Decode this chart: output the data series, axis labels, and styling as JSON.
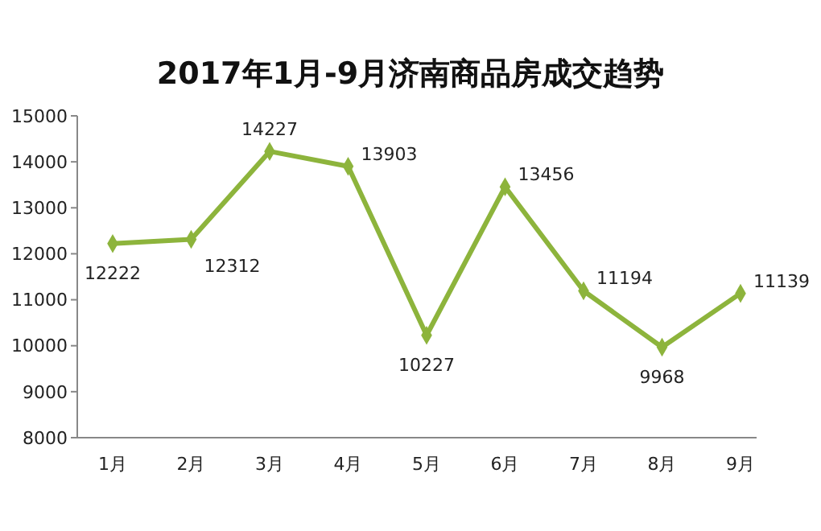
{
  "chart_data": {
    "type": "line",
    "title": "2017年1月-9月济南商品房成交趋势",
    "categories": [
      "1月",
      "2月",
      "3月",
      "4月",
      "5月",
      "6月",
      "7月",
      "8月",
      "9月"
    ],
    "series": [
      {
        "color": "#8db43c",
        "values": [
          12222,
          12312,
          14227,
          13903,
          10227,
          13456,
          11194,
          9968,
          11139
        ]
      }
    ],
    "ylim": [
      8000,
      15000
    ],
    "yticks": [
      8000,
      9000,
      10000,
      11000,
      12000,
      13000,
      14000,
      15000
    ],
    "marker": "diamond",
    "data_labels": true
  }
}
